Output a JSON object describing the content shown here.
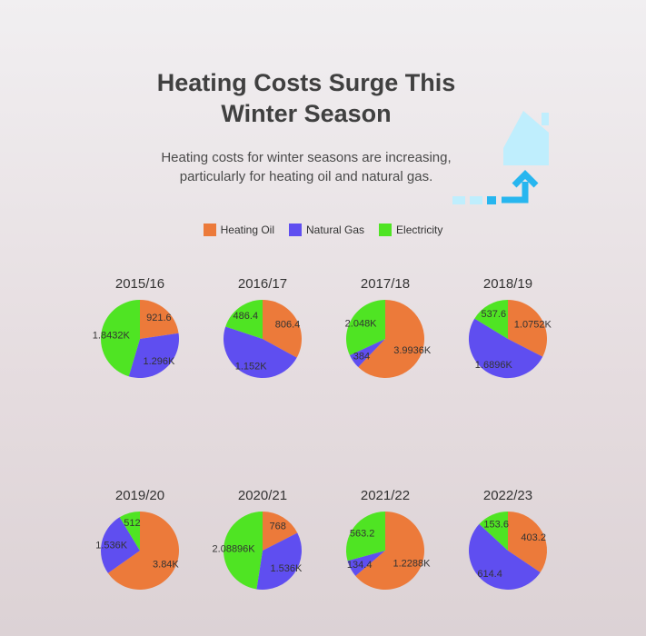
{
  "header": {
    "title_line1": "Heating Costs Surge This",
    "title_line2": "Winter Season",
    "subtitle_line1": "Heating costs for winter seasons are increasing,",
    "subtitle_line2": "particularly for heating oil and natural gas."
  },
  "icon": "house-heating-icon",
  "colors": {
    "heating_oil": "#ec7a3a",
    "natural_gas": "#5f4ef0",
    "electricity": "#4fe423",
    "house": "#bfeefd",
    "arrow": "#27b6ef"
  },
  "chart_data": {
    "type": "pie",
    "legend": [
      "Heating Oil",
      "Natural Gas",
      "Electricity"
    ],
    "legend_placement": "top-center",
    "charts": [
      {
        "title": "2015/16",
        "values": [
          921.6,
          1296,
          1843.2
        ],
        "labels": [
          "921.6",
          "1.296K",
          "1.8432K"
        ]
      },
      {
        "title": "2016/17",
        "values": [
          806.4,
          1152,
          486.4
        ],
        "labels": [
          "806.4",
          "1.152K",
          "486.4"
        ]
      },
      {
        "title": "2017/18",
        "values": [
          3993.6,
          384,
          2048
        ],
        "labels": [
          "3.9936K",
          "384",
          "2.048K"
        ]
      },
      {
        "title": "2018/19",
        "values": [
          1075.2,
          1689.6,
          537.6
        ],
        "labels": [
          "1.0752K",
          "1.6896K",
          "537.6"
        ]
      },
      {
        "title": "2019/20",
        "values": [
          3840,
          1536,
          512
        ],
        "labels": [
          "3.84K",
          "1.536K",
          "512"
        ]
      },
      {
        "title": "2020/21",
        "values": [
          768,
          1536,
          2088.96
        ],
        "labels": [
          "768",
          "1.536K",
          "2.08896K"
        ]
      },
      {
        "title": "2021/22",
        "values": [
          1228.8,
          134.4,
          563.2
        ],
        "labels": [
          "1.2288K",
          "134.4",
          "563.2"
        ]
      },
      {
        "title": "2022/23",
        "values": [
          403.2,
          614.4,
          153.6
        ],
        "labels": [
          "403.2",
          "614.4",
          "153.6"
        ]
      }
    ]
  }
}
